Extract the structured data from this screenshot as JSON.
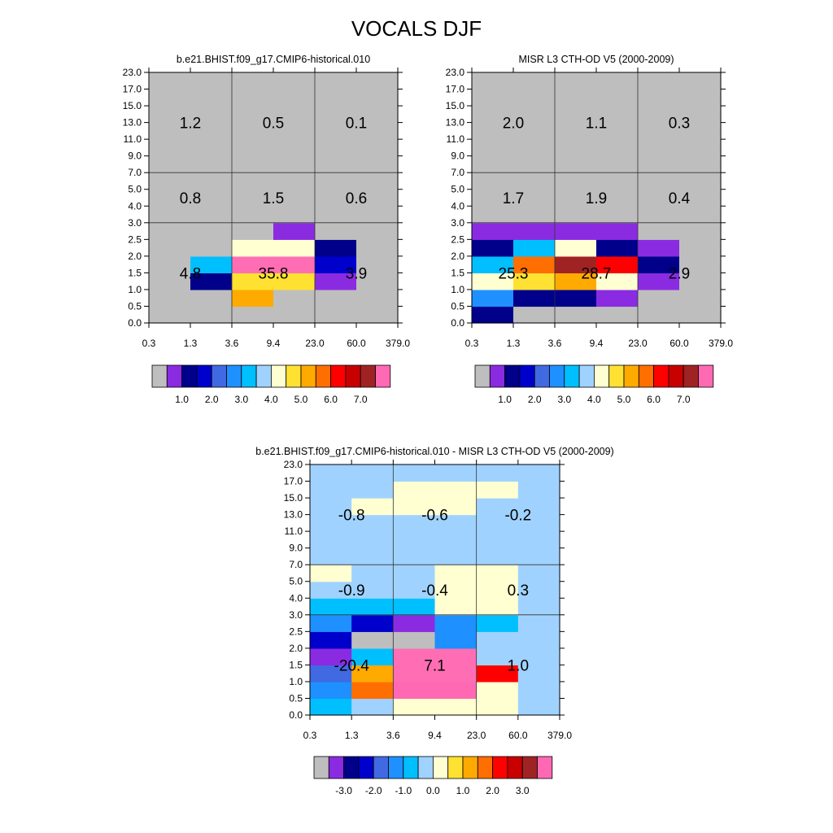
{
  "main_title": "VOCALS DJF",
  "chart_data": [
    {
      "type": "heatmap",
      "title": "b.e21.BHIST.f09_g17.CMIP6-historical.010",
      "x_tick_labels": [
        "0.3",
        "1.3",
        "3.6",
        "9.4",
        "23.0",
        "60.0",
        "379.0"
      ],
      "y_tick_labels": [
        "0.0",
        "0.5",
        "1.0",
        "1.5",
        "2.0",
        "2.5",
        "3.0",
        "4.0",
        "5.0",
        "7.0",
        "9.0",
        "11.0",
        "13.0",
        "15.0",
        "17.0",
        "23.0"
      ],
      "cells": [
        [
          0,
          0,
          0,
          0,
          0,
          0
        ],
        [
          0,
          0,
          10,
          0,
          0,
          0
        ],
        [
          0,
          2,
          9,
          9,
          1,
          0
        ],
        [
          0,
          6,
          16,
          16,
          3,
          0
        ],
        [
          0,
          0,
          8,
          8,
          2,
          0
        ],
        [
          0,
          0,
          0,
          1,
          0,
          0
        ],
        [
          0,
          0,
          0,
          0,
          0,
          0
        ],
        [
          0,
          0,
          0,
          0,
          0,
          0
        ],
        [
          0,
          0,
          0,
          0,
          0,
          0
        ],
        [
          0,
          0,
          0,
          0,
          0,
          0
        ],
        [
          0,
          0,
          0,
          0,
          0,
          0
        ],
        [
          0,
          0,
          0,
          0,
          0,
          0
        ],
        [
          0,
          0,
          0,
          0,
          0,
          0
        ],
        [
          0,
          0,
          0,
          0,
          0,
          0
        ],
        [
          0,
          0,
          0,
          0,
          0,
          0
        ]
      ],
      "region_labels": [
        {
          "row": 0,
          "col": 0,
          "text": "4.8"
        },
        {
          "row": 0,
          "col": 1,
          "text": "35.8"
        },
        {
          "row": 0,
          "col": 2,
          "text": "3.9"
        },
        {
          "row": 1,
          "col": 0,
          "text": "0.8"
        },
        {
          "row": 1,
          "col": 1,
          "text": "1.5"
        },
        {
          "row": 1,
          "col": 2,
          "text": "0.6"
        },
        {
          "row": 2,
          "col": 0,
          "text": "1.2"
        },
        {
          "row": 2,
          "col": 1,
          "text": "0.5"
        },
        {
          "row": 2,
          "col": 2,
          "text": "0.1"
        }
      ],
      "colorbar_labels": [
        "1.0",
        "2.0",
        "3.0",
        "4.0",
        "5.0",
        "6.0",
        "7.0"
      ]
    },
    {
      "type": "heatmap",
      "title": "MISR L3 CTH-OD V5 (2000-2009)",
      "x_tick_labels": [
        "0.3",
        "1.3",
        "3.6",
        "9.4",
        "23.0",
        "60.0",
        "379.0"
      ],
      "y_tick_labels": [
        "0.0",
        "0.5",
        "1.0",
        "1.5",
        "2.0",
        "2.5",
        "3.0",
        "4.0",
        "5.0",
        "7.0",
        "9.0",
        "11.0",
        "13.0",
        "15.0",
        "17.0",
        "23.0"
      ],
      "cells": [
        [
          2,
          0,
          0,
          0,
          0,
          0
        ],
        [
          5,
          2,
          2,
          1,
          0,
          0
        ],
        [
          8,
          9,
          10,
          8,
          1,
          0
        ],
        [
          6,
          11,
          14,
          12,
          2,
          0
        ],
        [
          2,
          6,
          8,
          2,
          1,
          0
        ],
        [
          1,
          1,
          1,
          1,
          0,
          0
        ],
        [
          0,
          0,
          0,
          0,
          0,
          0
        ],
        [
          0,
          0,
          0,
          0,
          0,
          0
        ],
        [
          0,
          0,
          0,
          0,
          0,
          0
        ],
        [
          0,
          0,
          0,
          0,
          0,
          0
        ],
        [
          0,
          0,
          0,
          0,
          0,
          0
        ],
        [
          0,
          0,
          0,
          0,
          0,
          0
        ],
        [
          0,
          0,
          0,
          0,
          0,
          0
        ],
        [
          0,
          0,
          0,
          0,
          0,
          0
        ],
        [
          0,
          0,
          0,
          0,
          0,
          0
        ]
      ],
      "region_labels": [
        {
          "row": 0,
          "col": 0,
          "text": "25.3"
        },
        {
          "row": 0,
          "col": 1,
          "text": "28.7"
        },
        {
          "row": 0,
          "col": 2,
          "text": "2.9"
        },
        {
          "row": 1,
          "col": 0,
          "text": "1.7"
        },
        {
          "row": 1,
          "col": 1,
          "text": "1.9"
        },
        {
          "row": 1,
          "col": 2,
          "text": "0.4"
        },
        {
          "row": 2,
          "col": 0,
          "text": "2.0"
        },
        {
          "row": 2,
          "col": 1,
          "text": "1.1"
        },
        {
          "row": 2,
          "col": 2,
          "text": "0.3"
        }
      ],
      "colorbar_labels": [
        "1.0",
        "2.0",
        "3.0",
        "4.0",
        "5.0",
        "6.0",
        "7.0"
      ]
    },
    {
      "type": "heatmap",
      "title": "b.e21.BHIST.f09_g17.CMIP6-historical.010 - MISR L3 CTH-OD V5 (2000-2009)",
      "x_tick_labels": [
        "0.3",
        "1.3",
        "3.6",
        "9.4",
        "23.0",
        "60.0",
        "379.0"
      ],
      "y_tick_labels": [
        "0.0",
        "0.5",
        "1.0",
        "1.5",
        "2.0",
        "2.5",
        "3.0",
        "4.0",
        "5.0",
        "7.0",
        "9.0",
        "11.0",
        "13.0",
        "15.0",
        "17.0",
        "23.0"
      ],
      "cells": [
        [
          6,
          7,
          8,
          8,
          8,
          7
        ],
        [
          5,
          11,
          15,
          15,
          8,
          7
        ],
        [
          4,
          10,
          16,
          16,
          12,
          7
        ],
        [
          1,
          6,
          16,
          16,
          7,
          7
        ],
        [
          3,
          0,
          0,
          5,
          7,
          7
        ],
        [
          5,
          3,
          1,
          5,
          6,
          7
        ],
        [
          6,
          6,
          6,
          8,
          8,
          7
        ],
        [
          7,
          7,
          7,
          8,
          8,
          7
        ],
        [
          8,
          7,
          7,
          8,
          8,
          7
        ],
        [
          7,
          7,
          7,
          7,
          7,
          7
        ],
        [
          7,
          7,
          7,
          7,
          7,
          7
        ],
        [
          7,
          7,
          7,
          7,
          7,
          7
        ],
        [
          7,
          8,
          8,
          8,
          7,
          7
        ],
        [
          7,
          7,
          8,
          8,
          8,
          7
        ],
        [
          7,
          7,
          7,
          7,
          7,
          7
        ]
      ],
      "region_labels": [
        {
          "row": 0,
          "col": 0,
          "text": "-20.4"
        },
        {
          "row": 0,
          "col": 1,
          "text": "7.1"
        },
        {
          "row": 0,
          "col": 2,
          "text": "1.0"
        },
        {
          "row": 1,
          "col": 0,
          "text": "-0.9"
        },
        {
          "row": 1,
          "col": 1,
          "text": "-0.4"
        },
        {
          "row": 1,
          "col": 2,
          "text": "0.3"
        },
        {
          "row": 2,
          "col": 0,
          "text": "-0.8"
        },
        {
          "row": 2,
          "col": 1,
          "text": "-0.6"
        },
        {
          "row": 2,
          "col": 2,
          "text": "-0.2"
        }
      ],
      "colorbar_labels": [
        "-3.0",
        "-2.0",
        "-1.0",
        "0.0",
        "1.0",
        "2.0",
        "3.0"
      ]
    }
  ],
  "palette": [
    "#bebebe",
    "#8a2be2",
    "#00008b",
    "#0000cd",
    "#4169e1",
    "#1e90ff",
    "#00bfff",
    "#a0d2ff",
    "#ffffd1",
    "#ffe132",
    "#ffaa00",
    "#ff6e00",
    "#ff0000",
    "#c80000",
    "#a02323",
    "#ff69b4",
    "#ff6eb4"
  ]
}
